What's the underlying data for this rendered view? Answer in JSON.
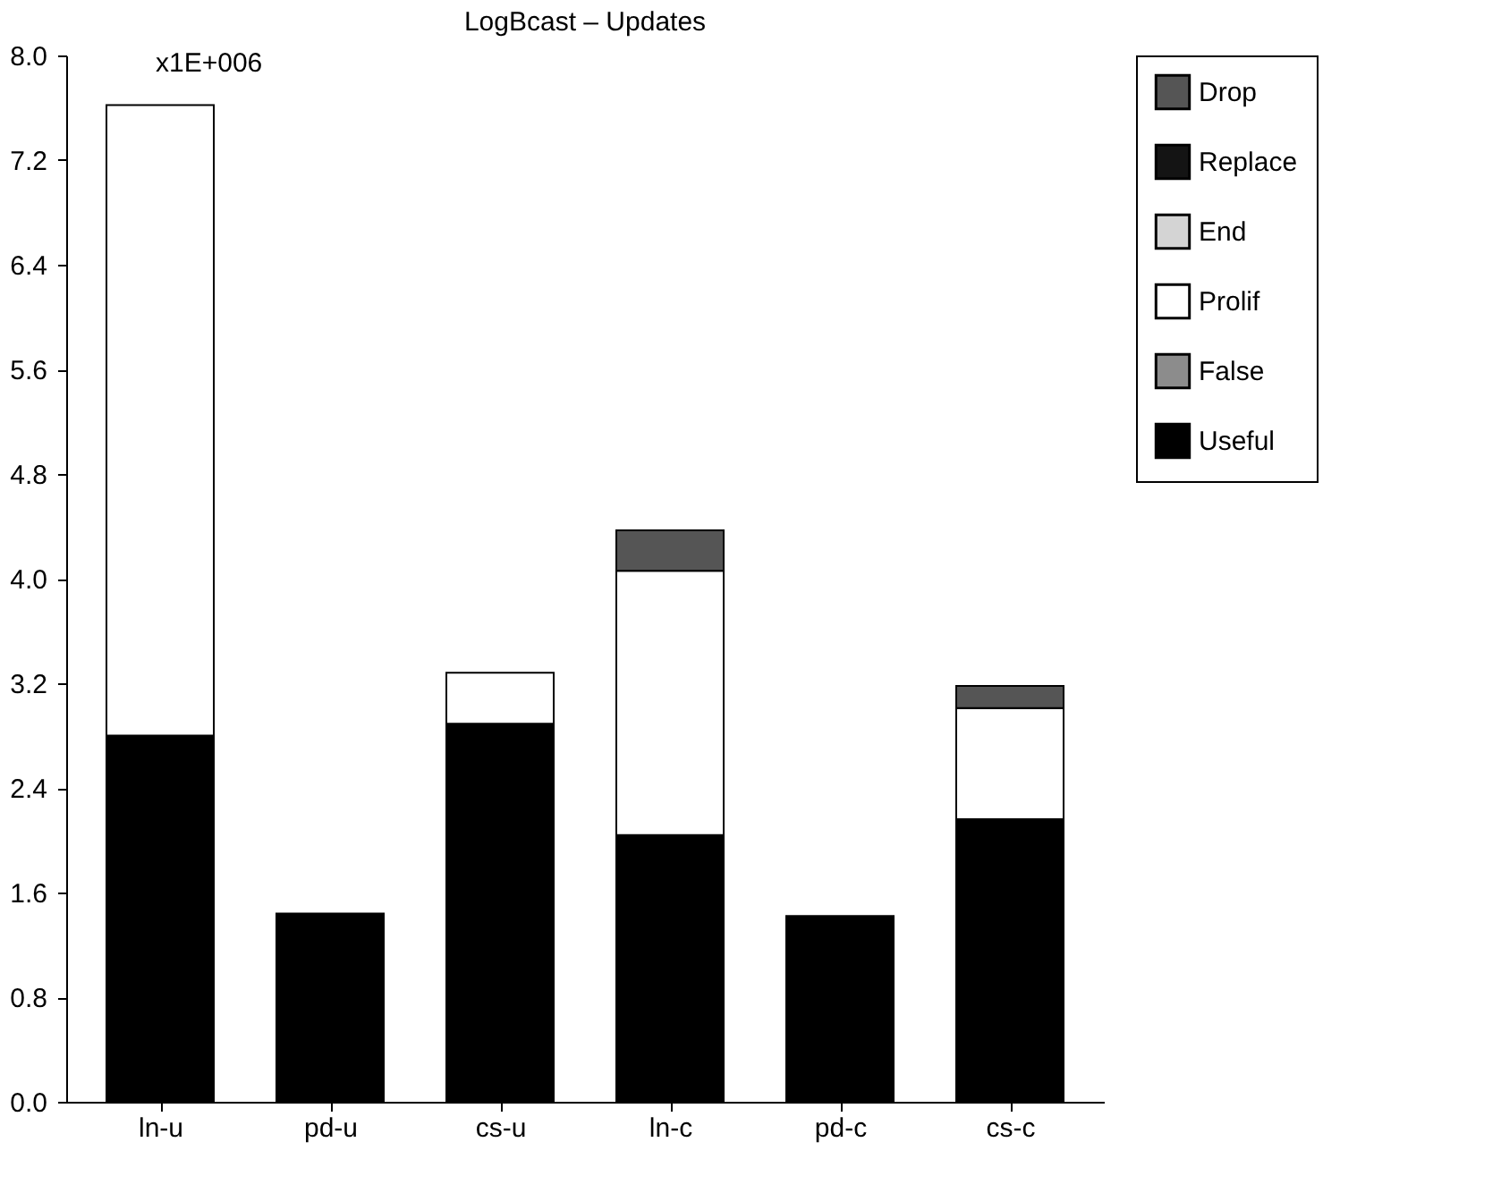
{
  "chart_data": {
    "type": "bar",
    "title": "LogBcast – Updates",
    "stacked": true,
    "categories": [
      "ln-u",
      "pd-u",
      "cs-u",
      "ln-c",
      "pd-c",
      "cs-c"
    ],
    "series": [
      {
        "name": "Useful",
        "color": "#000000",
        "values": [
          2.8,
          1.44,
          2.89,
          2.04,
          1.42,
          2.16
        ]
      },
      {
        "name": "False",
        "color": "#8c8c8c",
        "values": [
          null,
          null,
          null,
          null,
          null,
          null
        ]
      },
      {
        "name": "Prolif",
        "color": "#ffffff",
        "values": [
          4.82,
          null,
          0.39,
          2.02,
          null,
          0.85
        ]
      },
      {
        "name": "End",
        "color": "#d4d4d4",
        "values": [
          null,
          null,
          null,
          null,
          null,
          null
        ]
      },
      {
        "name": "Replace",
        "color": "#141414",
        "values": [
          null,
          null,
          null,
          null,
          null,
          null
        ]
      },
      {
        "name": "Drop",
        "color": "#555555",
        "values": [
          null,
          null,
          null,
          0.31,
          null,
          0.17
        ]
      }
    ],
    "ylim": [
      0,
      8
    ],
    "yticks": [
      {
        "value": 0,
        "label": "0.0"
      },
      0.8,
      1.6,
      2.4,
      3.2,
      4.8,
      5.6,
      6.4,
      7.2,
      {
        "value": 4,
        "label": "4.0"
      },
      {
        "value": 8,
        "label": "8.0"
      }
    ],
    "annotations": [
      "x1E+006"
    ],
    "legend": "top right",
    "grid": false
  }
}
